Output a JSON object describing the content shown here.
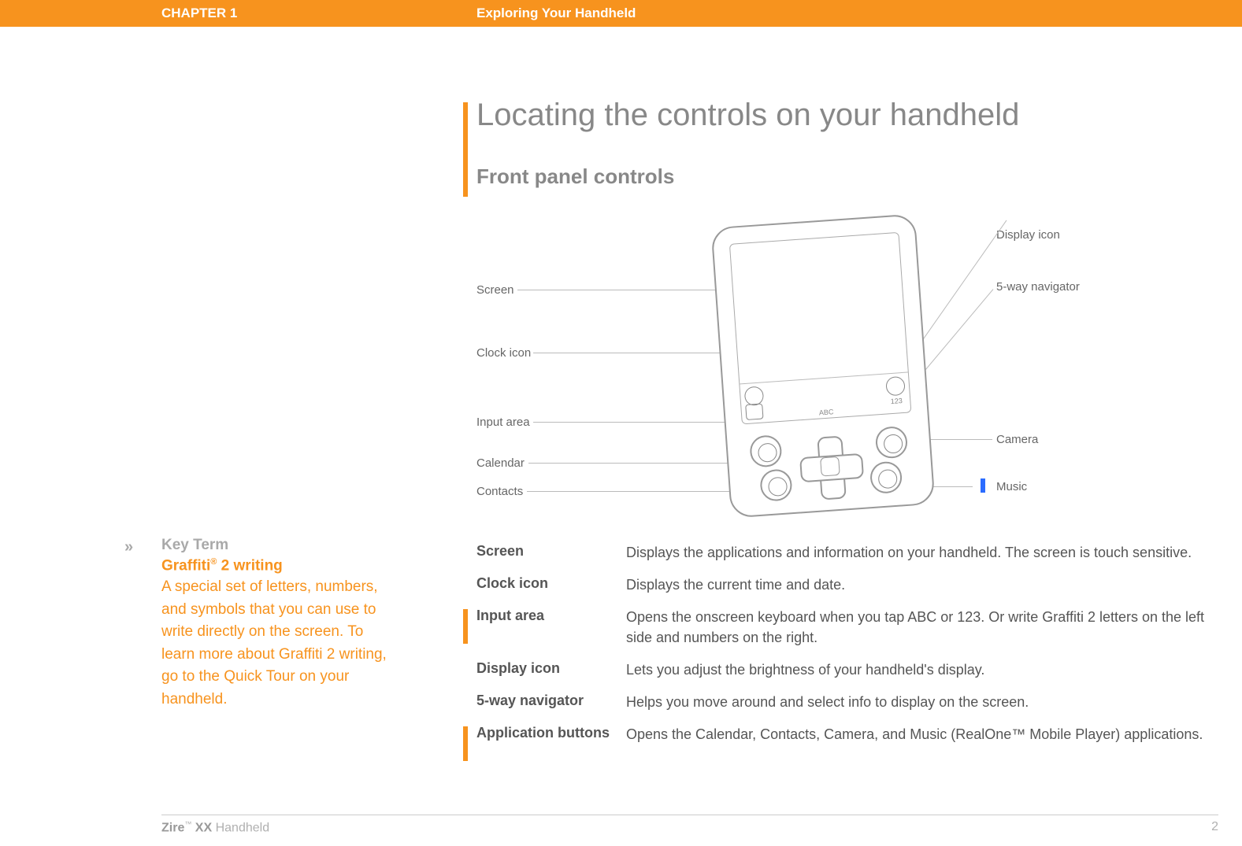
{
  "header": {
    "chapter": "CHAPTER 1",
    "title": "Exploring Your Handheld"
  },
  "sidebar": {
    "marker": "»",
    "label": "Key Term",
    "term_title_pre": "Graffiti",
    "term_title_sup": "®",
    "term_title_post": " 2 writing",
    "body": "A special set of letters, numbers, and symbols that you can use to write directly on the screen. To learn more about Graffiti 2 writing, go to the Quick Tour on your handheld."
  },
  "main": {
    "h1": "Locating the controls on your handheld",
    "h2": "Front panel controls",
    "diagram_caption": "Application buttons",
    "labels_left": {
      "screen": "Screen",
      "clock": "Clock icon",
      "input": "Input area",
      "calendar": "Calendar",
      "contacts": "Contacts"
    },
    "labels_right": {
      "display": "Display icon",
      "nav": "5-way navigator",
      "camera": "Camera",
      "music": "Music"
    },
    "input_strip": {
      "abc": "ABC",
      "num": "123"
    }
  },
  "defs": [
    {
      "term": "Screen",
      "body": "Displays the applications and information on your handheld. The screen is touch sensitive.",
      "accent": false
    },
    {
      "term": "Clock icon",
      "body": "Displays the current time and date.",
      "accent": false
    },
    {
      "term": "Input area",
      "body": "Opens the onscreen keyboard when you tap ABC or 123. Or write Graffiti 2 letters on the left side and numbers on the right.",
      "accent": true,
      "accent_h": 44
    },
    {
      "term": "Display icon",
      "body": "Lets you adjust the brightness of your handheld's display.",
      "accent": false
    },
    {
      "term": "5-way navigator",
      "body": "Helps you move around and select info to display on the screen.",
      "accent": false
    },
    {
      "term": "Application buttons",
      "body": "Opens the Calendar, Contacts, Camera, and Music (RealOne™ Mobile Player) applications.",
      "accent": true,
      "accent_h": 44
    }
  ],
  "footer": {
    "brand_bold": "Zire",
    "brand_sup": "™",
    "brand_model": " XX",
    "brand_suffix": " Handheld",
    "page": "2"
  },
  "colors": {
    "orange": "#f7931e",
    "gray_text": "#888888",
    "body_text": "#555555",
    "blue": "#2b6cff"
  }
}
